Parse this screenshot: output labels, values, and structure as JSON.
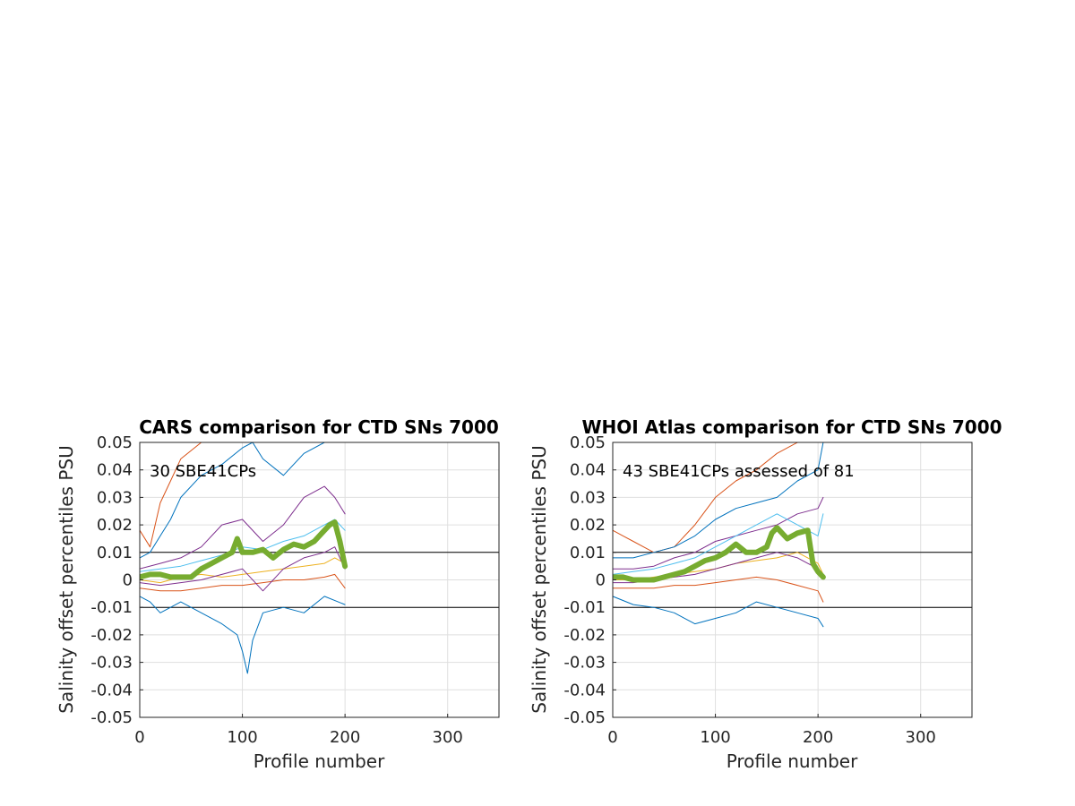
{
  "chart_data": [
    {
      "type": "line",
      "title": "CARS comparison for CTD SNs 7000",
      "xlabel": "Profile number",
      "ylabel": "Salinity offset percentiles PSU",
      "annotation": "30 SBE41CPs",
      "xlim": [
        0,
        350
      ],
      "ylim": [
        -0.05,
        0.05
      ],
      "xticks": [
        0,
        100,
        200,
        300
      ],
      "yticks": [
        -0.05,
        -0.04,
        -0.03,
        -0.02,
        -0.01,
        0,
        0.01,
        0.02,
        0.03,
        0.04,
        0.05
      ],
      "xticklabels": [
        "0",
        "100",
        "200",
        "300"
      ],
      "yticklabels": [
        "-0.05",
        "-0.04",
        "-0.03",
        "-0.02",
        "-0.01",
        "0",
        "0.01",
        "0.02",
        "0.03",
        "0.04",
        "0.05"
      ],
      "grid": true,
      "reference_lines": [
        0.01,
        -0.01
      ],
      "series": [
        {
          "color": "#D95319",
          "width": 1,
          "x": [
            0,
            10,
            20,
            30,
            40,
            60,
            80,
            100,
            120,
            140,
            160,
            180,
            190,
            200
          ],
          "values": [
            0.018,
            0.012,
            0.028,
            0.036,
            0.044,
            0.05,
            0.05,
            0.05,
            0.05,
            0.05,
            0.05,
            0.05,
            0.05,
            0.05
          ]
        },
        {
          "color": "#0072BD",
          "width": 1,
          "x": [
            0,
            10,
            20,
            30,
            40,
            60,
            80,
            100,
            110,
            120,
            140,
            160,
            180,
            190,
            200
          ],
          "values": [
            0.008,
            0.01,
            0.016,
            0.022,
            0.03,
            0.038,
            0.042,
            0.048,
            0.05,
            0.044,
            0.038,
            0.046,
            0.05,
            0.05,
            0.05
          ]
        },
        {
          "color": "#7E2F8E",
          "width": 1,
          "x": [
            0,
            20,
            40,
            60,
            80,
            100,
            120,
            140,
            160,
            180,
            190,
            200
          ],
          "values": [
            0.004,
            0.006,
            0.008,
            0.012,
            0.02,
            0.022,
            0.014,
            0.02,
            0.03,
            0.034,
            0.03,
            0.024
          ]
        },
        {
          "color": "#4DBEEE",
          "width": 1,
          "x": [
            0,
            20,
            40,
            60,
            80,
            100,
            120,
            140,
            160,
            180,
            190,
            200
          ],
          "values": [
            0.003,
            0.004,
            0.005,
            0.007,
            0.009,
            0.012,
            0.011,
            0.014,
            0.016,
            0.02,
            0.022,
            0.018
          ]
        },
        {
          "color": "#EDB120",
          "width": 1,
          "x": [
            0,
            20,
            40,
            60,
            80,
            100,
            120,
            140,
            160,
            180,
            190,
            200
          ],
          "values": [
            0.0,
            -0.001,
            0.001,
            0.002,
            0.001,
            0.002,
            0.003,
            0.004,
            0.005,
            0.006,
            0.008,
            0.006
          ]
        },
        {
          "color": "#D95319",
          "width": 1,
          "x": [
            0,
            20,
            40,
            60,
            80,
            100,
            120,
            140,
            160,
            180,
            190,
            200
          ],
          "values": [
            -0.003,
            -0.004,
            -0.004,
            -0.003,
            -0.002,
            -0.002,
            -0.001,
            0.0,
            0.0,
            0.001,
            0.002,
            -0.003
          ]
        },
        {
          "color": "#7E2F8E",
          "width": 1,
          "x": [
            0,
            20,
            40,
            60,
            80,
            100,
            120,
            140,
            160,
            180,
            190,
            200
          ],
          "values": [
            -0.001,
            -0.002,
            -0.001,
            0.0,
            0.002,
            0.004,
            -0.004,
            0.004,
            0.008,
            0.01,
            0.012,
            0.004
          ]
        },
        {
          "color": "#0072BD",
          "width": 1,
          "x": [
            0,
            10,
            20,
            30,
            40,
            60,
            80,
            95,
            100,
            105,
            110,
            120,
            140,
            160,
            180,
            200
          ],
          "values": [
            -0.006,
            -0.008,
            -0.012,
            -0.01,
            -0.008,
            -0.012,
            -0.016,
            -0.02,
            -0.026,
            -0.034,
            -0.022,
            -0.012,
            -0.01,
            -0.012,
            -0.006,
            -0.009
          ]
        },
        {
          "color": "#77AC30",
          "width": 6,
          "x": [
            0,
            10,
            20,
            30,
            40,
            50,
            60,
            70,
            80,
            90,
            95,
            100,
            110,
            120,
            130,
            140,
            150,
            160,
            170,
            180,
            185,
            190,
            195,
            200
          ],
          "values": [
            0.001,
            0.002,
            0.002,
            0.001,
            0.001,
            0.001,
            0.004,
            0.006,
            0.008,
            0.01,
            0.015,
            0.01,
            0.01,
            0.011,
            0.008,
            0.011,
            0.013,
            0.012,
            0.014,
            0.018,
            0.02,
            0.021,
            0.014,
            0.005
          ]
        }
      ]
    },
    {
      "type": "line",
      "title": "WHOI Atlas comparison for CTD SNs 7000",
      "xlabel": "Profile number",
      "ylabel": "Salinity offset percentiles PSU",
      "annotation": "43 SBE41CPs assessed of 81",
      "xlim": [
        0,
        350
      ],
      "ylim": [
        -0.05,
        0.05
      ],
      "xticks": [
        0,
        100,
        200,
        300
      ],
      "yticks": [
        -0.05,
        -0.04,
        -0.03,
        -0.02,
        -0.01,
        0,
        0.01,
        0.02,
        0.03,
        0.04,
        0.05
      ],
      "xticklabels": [
        "0",
        "100",
        "200",
        "300"
      ],
      "yticklabels": [
        "-0.05",
        "-0.04",
        "-0.03",
        "-0.02",
        "-0.01",
        "0",
        "0.01",
        "0.02",
        "0.03",
        "0.04",
        "0.05"
      ],
      "grid": true,
      "reference_lines": [
        0.01,
        -0.01
      ],
      "series": [
        {
          "color": "#D95319",
          "width": 1,
          "x": [
            0,
            10,
            20,
            30,
            40,
            60,
            80,
            100,
            120,
            140,
            160,
            180,
            200
          ],
          "values": [
            0.018,
            0.016,
            0.014,
            0.012,
            0.01,
            0.012,
            0.02,
            0.03,
            0.036,
            0.04,
            0.046,
            0.05,
            0.05
          ]
        },
        {
          "color": "#0072BD",
          "width": 1,
          "x": [
            0,
            20,
            40,
            60,
            80,
            100,
            120,
            140,
            160,
            180,
            200,
            205
          ],
          "values": [
            0.008,
            0.008,
            0.01,
            0.012,
            0.016,
            0.022,
            0.026,
            0.028,
            0.03,
            0.036,
            0.04,
            0.05
          ]
        },
        {
          "color": "#7E2F8E",
          "width": 1,
          "x": [
            0,
            20,
            40,
            60,
            80,
            100,
            120,
            140,
            160,
            180,
            200,
            205
          ],
          "values": [
            0.004,
            0.004,
            0.005,
            0.008,
            0.01,
            0.014,
            0.016,
            0.018,
            0.02,
            0.024,
            0.026,
            0.03
          ]
        },
        {
          "color": "#4DBEEE",
          "width": 1,
          "x": [
            0,
            20,
            40,
            60,
            80,
            100,
            120,
            140,
            160,
            180,
            200,
            205
          ],
          "values": [
            0.002,
            0.003,
            0.004,
            0.006,
            0.008,
            0.012,
            0.016,
            0.02,
            0.024,
            0.02,
            0.016,
            0.024
          ]
        },
        {
          "color": "#EDB120",
          "width": 1,
          "x": [
            0,
            20,
            40,
            60,
            80,
            100,
            120,
            140,
            160,
            180,
            200,
            205
          ],
          "values": [
            0.0,
            0.0,
            0.001,
            0.002,
            0.003,
            0.004,
            0.006,
            0.007,
            0.008,
            0.01,
            0.006,
            0.002
          ]
        },
        {
          "color": "#D95319",
          "width": 1,
          "x": [
            0,
            20,
            40,
            60,
            80,
            100,
            120,
            140,
            160,
            180,
            200,
            205
          ],
          "values": [
            -0.003,
            -0.003,
            -0.003,
            -0.002,
            -0.002,
            -0.001,
            0.0,
            0.001,
            0.0,
            -0.002,
            -0.004,
            -0.008
          ]
        },
        {
          "color": "#7E2F8E",
          "width": 1,
          "x": [
            0,
            20,
            40,
            60,
            80,
            100,
            120,
            140,
            160,
            180,
            200,
            205
          ],
          "values": [
            -0.001,
            -0.001,
            0.0,
            0.001,
            0.002,
            0.004,
            0.006,
            0.008,
            0.01,
            0.008,
            0.004,
            0.002
          ]
        },
        {
          "color": "#0072BD",
          "width": 1,
          "x": [
            0,
            20,
            40,
            60,
            80,
            100,
            120,
            140,
            160,
            180,
            200,
            205
          ],
          "values": [
            -0.006,
            -0.009,
            -0.01,
            -0.012,
            -0.016,
            -0.014,
            -0.012,
            -0.008,
            -0.01,
            -0.012,
            -0.014,
            -0.017
          ]
        },
        {
          "color": "#77AC30",
          "width": 6,
          "x": [
            0,
            10,
            20,
            30,
            40,
            50,
            60,
            70,
            80,
            90,
            100,
            110,
            120,
            130,
            140,
            150,
            155,
            160,
            170,
            180,
            190,
            195,
            200,
            205
          ],
          "values": [
            0.001,
            0.001,
            0.0,
            0.0,
            0.0,
            0.001,
            0.002,
            0.003,
            0.005,
            0.007,
            0.008,
            0.01,
            0.013,
            0.01,
            0.01,
            0.012,
            0.017,
            0.019,
            0.015,
            0.017,
            0.018,
            0.006,
            0.003,
            0.001
          ]
        }
      ]
    }
  ]
}
